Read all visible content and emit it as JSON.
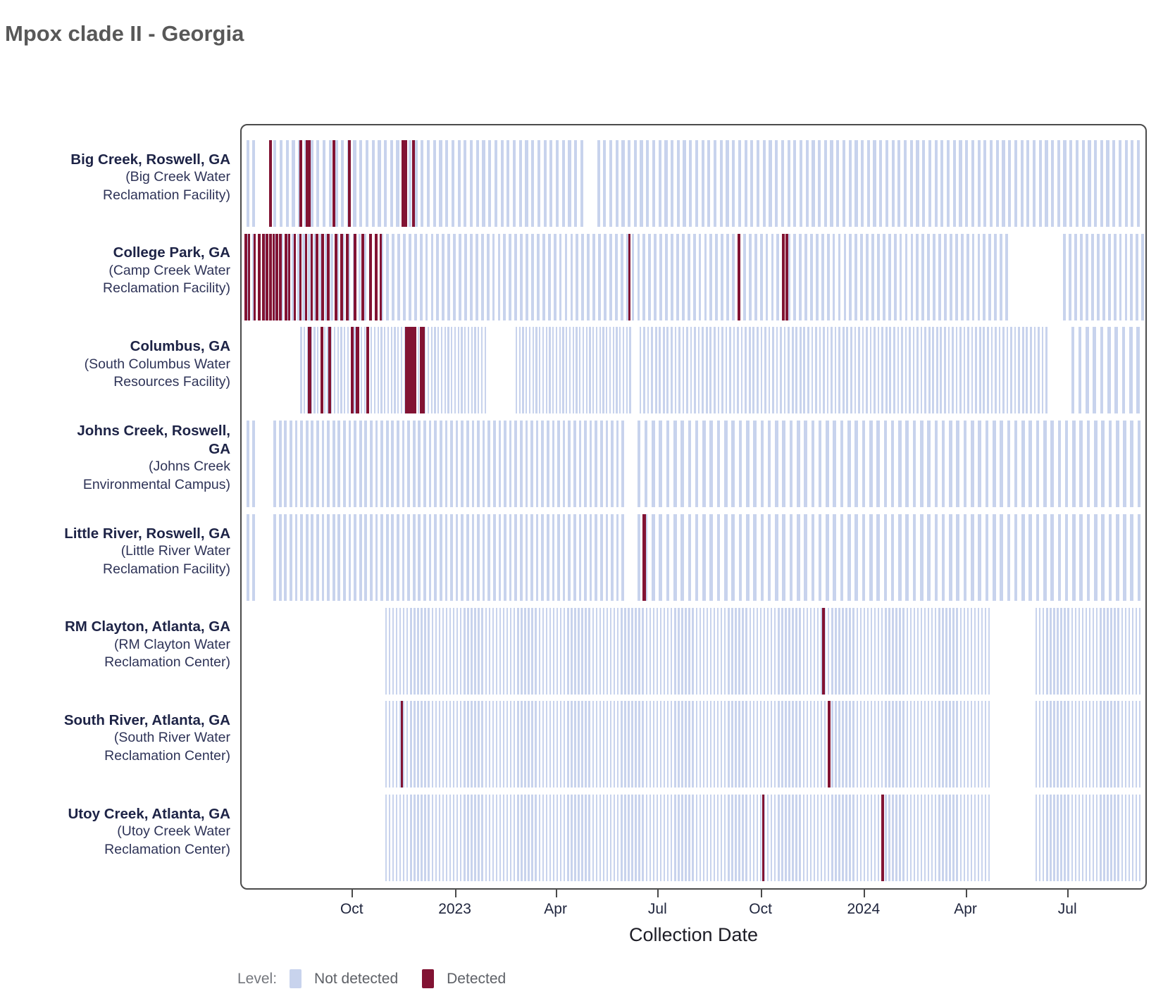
{
  "title": "Mpox clade II - Georgia",
  "chart_data": {
    "type": "barcode-timeline",
    "title": "Mpox clade II - Georgia",
    "xlabel": "Collection Date",
    "x_axis": {
      "min": "2022-06-25",
      "max": "2024-09-09",
      "ticks": [
        {
          "date": "2022-10-01",
          "label": "Oct"
        },
        {
          "date": "2023-01-01",
          "label": "2023"
        },
        {
          "date": "2023-04-01",
          "label": "Apr"
        },
        {
          "date": "2023-07-01",
          "label": "Jul"
        },
        {
          "date": "2023-10-01",
          "label": "Oct"
        },
        {
          "date": "2024-01-01",
          "label": "2024"
        },
        {
          "date": "2024-04-01",
          "label": "Apr"
        },
        {
          "date": "2024-07-01",
          "label": "Jul"
        }
      ]
    },
    "legend": {
      "title": "Level:",
      "items": [
        {
          "key": "not_detected",
          "label": "Not detected",
          "color": "#c8d3ed"
        },
        {
          "key": "detected",
          "label": "Detected",
          "color": "#821333"
        }
      ]
    },
    "colors": {
      "not_detected": "#c8d3ed",
      "detected": "#821333"
    },
    "facilities": [
      {
        "name_lines": [
          "Big Creek, Roswell, GA"
        ],
        "facility_lines": [
          "(Big Creek Water",
          "Reclamation Facility)"
        ],
        "not_detected_runs": [
          [
            "2022-06-28",
            "2022-07-04",
            5
          ],
          [
            "2022-07-22",
            "2023-04-24",
            5.5
          ],
          [
            "2023-05-08",
            "2024-09-08",
            5.5
          ]
        ],
        "detected": [
          "2022-07-18",
          "2022-08-14",
          "2022-08-20",
          "2022-08-22",
          "2022-09-13",
          "2022-09-27",
          "2022-11-14",
          "2022-11-16",
          "2022-11-23"
        ]
      },
      {
        "name_lines": [
          "College Park, GA"
        ],
        "facility_lines": [
          "(Camp Creek Water",
          "Reclamation Facility)"
        ],
        "not_detected_runs": [
          [
            "2022-06-23",
            "2024-05-10",
            5
          ],
          [
            "2024-06-29",
            "2024-09-08",
            5
          ]
        ],
        "detected": [
          "2022-06-23",
          "2022-06-26",
          "2022-06-29",
          "2022-07-04",
          "2022-07-08",
          "2022-07-12",
          "2022-07-15",
          "2022-07-18",
          "2022-07-21",
          "2022-07-24",
          "2022-07-27",
          "2022-08-01",
          "2022-08-04",
          "2022-08-09",
          "2022-08-14",
          "2022-08-19",
          "2022-08-24",
          "2022-08-29",
          "2022-09-03",
          "2022-09-08",
          "2022-09-15",
          "2022-09-20",
          "2022-09-25",
          "2022-10-02",
          "2022-10-09",
          "2022-10-16",
          "2022-10-21",
          "2022-10-25",
          "2023-06-05",
          "2023-09-11",
          "2023-10-21",
          "2023-10-24"
        ]
      },
      {
        "name_lines": [
          "Columbus, GA"
        ],
        "facility_lines": [
          "(South Columbus Water",
          "Resources Facility)"
        ],
        "not_detected_runs": [
          [
            "2022-08-15",
            "2023-01-27",
            3
          ],
          [
            "2023-02-24",
            "2023-06-06",
            3
          ],
          [
            "2023-06-15",
            "2024-06-14",
            3.5
          ],
          [
            "2024-07-06",
            "2024-09-05",
            6.5
          ]
        ],
        "detected": [
          "2022-08-22",
          "2022-09-02",
          "2022-09-09",
          "2022-09-29",
          "2022-10-04",
          "2022-10-13",
          "2022-11-17",
          "2022-11-19",
          "2022-11-21",
          "2022-11-24",
          "2022-11-30",
          "2022-12-02"
        ]
      },
      {
        "name_lines": [
          "Johns Creek, Roswell,",
          "GA"
        ],
        "facility_lines": [
          "(Johns Creek",
          "Environmental Campus)"
        ],
        "not_detected_runs": [
          [
            "2022-06-28",
            "2022-07-04",
            5
          ],
          [
            "2022-07-22",
            "2023-06-02",
            4.8
          ],
          [
            "2023-06-13",
            "2024-09-08",
            6.5
          ]
        ],
        "detected": []
      },
      {
        "name_lines": [
          "Little River, Roswell, GA"
        ],
        "facility_lines": [
          "(Little River Water",
          "Reclamation Facility)"
        ],
        "not_detected_runs": [
          [
            "2022-06-28",
            "2022-07-04",
            5
          ],
          [
            "2022-07-22",
            "2023-06-02",
            4.8
          ],
          [
            "2023-06-13",
            "2024-09-08",
            6.5
          ]
        ],
        "detected": [
          "2023-06-18"
        ]
      },
      {
        "name_lines": [
          "RM Clayton, Atlanta, GA"
        ],
        "facility_lines": [
          "(RM Clayton Water",
          "Reclamation Center)"
        ],
        "not_detected_runs": [
          [
            "2022-10-30",
            "2024-04-23",
            3.2
          ],
          [
            "2024-06-04",
            "2024-09-08",
            3.2
          ]
        ],
        "detected": [
          "2023-11-26"
        ]
      },
      {
        "name_lines": [
          "South River, Atlanta, GA"
        ],
        "facility_lines": [
          "(South River Water",
          "Reclamation Center)"
        ],
        "not_detected_runs": [
          [
            "2022-10-30",
            "2024-04-23",
            3.2
          ],
          [
            "2024-06-04",
            "2024-09-08",
            3.2
          ]
        ],
        "detected": [
          "2022-11-13",
          "2023-12-01"
        ]
      },
      {
        "name_lines": [
          "Utoy Creek, Atlanta, GA"
        ],
        "facility_lines": [
          "(Utoy Creek Water",
          "Reclamation Center)"
        ],
        "not_detected_runs": [
          [
            "2022-10-30",
            "2024-04-23",
            3.2
          ],
          [
            "2024-06-04",
            "2024-09-08",
            3.2
          ]
        ],
        "detected": [
          "2023-10-03",
          "2024-01-18"
        ]
      }
    ]
  }
}
